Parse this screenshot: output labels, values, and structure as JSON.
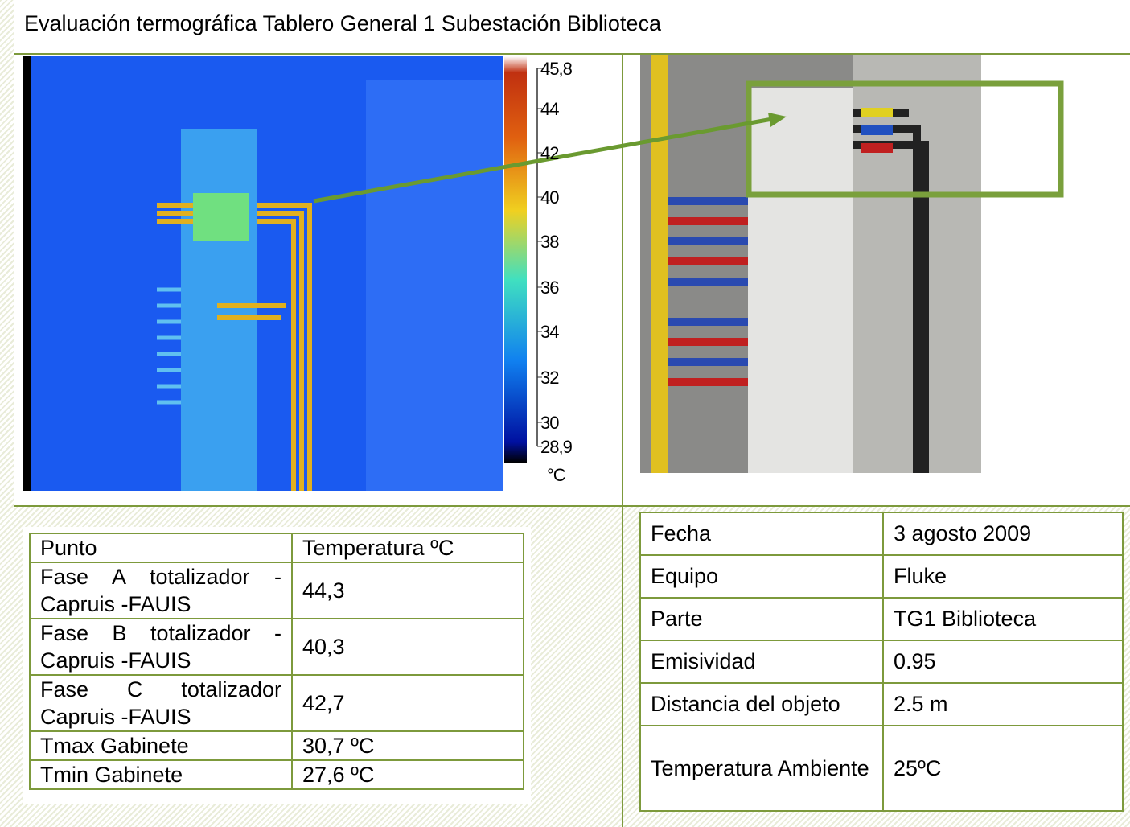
{
  "title": "Evaluación termográfica Tablero General 1 Subestación Biblioteca",
  "thermal_scale": {
    "labels": [
      "45,8",
      "44",
      "42",
      "40",
      "38",
      "36",
      "34",
      "32",
      "30",
      "28,9"
    ],
    "unit": "°C"
  },
  "left_table": {
    "header": [
      "Punto",
      "Temperatura ºC"
    ],
    "rows": [
      [
        "Fase A totalizador - Capruis -FAUIS",
        "44,3"
      ],
      [
        "Fase B totalizador - Capruis -FAUIS",
        "40,3"
      ],
      [
        "Fase C totalizador Capruis -FAUIS",
        "42,7"
      ],
      [
        "Tmax Gabinete",
        "30,7 ºC"
      ],
      [
        "Tmin Gabinete",
        "27,6 ºC"
      ]
    ]
  },
  "right_table": {
    "rows": [
      [
        "Fecha",
        "3 agosto 2009"
      ],
      [
        "Equipo",
        "Fluke"
      ],
      [
        "Parte",
        "TG1 Biblioteca"
      ],
      [
        "Emisividad",
        "0.95"
      ],
      [
        "Distancia del objeto",
        "2.5 m"
      ],
      [
        "Temperatura Ambiente",
        "25ºC"
      ]
    ]
  }
}
